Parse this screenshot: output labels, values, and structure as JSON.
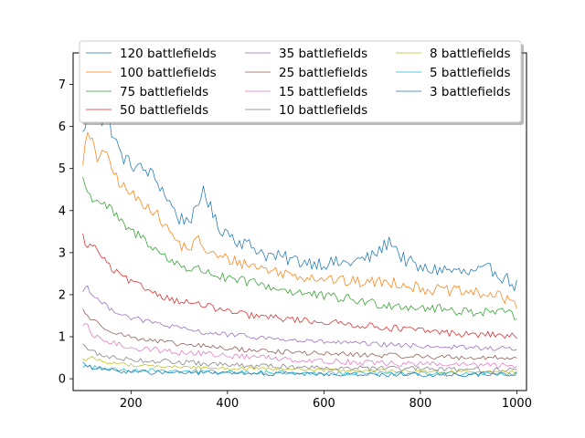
{
  "chart_data": {
    "type": "line",
    "title": "",
    "xlabel": "",
    "ylabel": "",
    "xlim": [
      80,
      1020
    ],
    "ylim": [
      -0.28,
      7.75
    ],
    "x_ticks": [
      200,
      400,
      600,
      800,
      1000
    ],
    "y_ticks": [
      0,
      1,
      2,
      3,
      4,
      5,
      6,
      7
    ],
    "x_range": [
      100,
      1000
    ],
    "x_step": 5,
    "grid": false,
    "legend_position": "top",
    "series": [
      {
        "name": "120 battlefields",
        "color": "#1f77b4",
        "anchors": [
          [
            100,
            5.8
          ],
          [
            110,
            6.3
          ],
          [
            120,
            6.1
          ],
          [
            130,
            6.4
          ],
          [
            140,
            6.1
          ],
          [
            150,
            6.3
          ],
          [
            160,
            5.9
          ],
          [
            170,
            5.6
          ],
          [
            180,
            5.3
          ],
          [
            200,
            5.1
          ],
          [
            220,
            5.0
          ],
          [
            240,
            4.9
          ],
          [
            260,
            4.6
          ],
          [
            280,
            4.2
          ],
          [
            300,
            3.8
          ],
          [
            320,
            3.8
          ],
          [
            340,
            4.0
          ],
          [
            350,
            4.6
          ],
          [
            360,
            4.2
          ],
          [
            380,
            3.6
          ],
          [
            400,
            3.5
          ],
          [
            420,
            3.3
          ],
          [
            440,
            3.2
          ],
          [
            460,
            3.1
          ],
          [
            480,
            2.95
          ],
          [
            500,
            2.9
          ],
          [
            550,
            2.8
          ],
          [
            600,
            2.75
          ],
          [
            650,
            2.75
          ],
          [
            700,
            2.9
          ],
          [
            740,
            3.3
          ],
          [
            760,
            2.9
          ],
          [
            800,
            2.6
          ],
          [
            850,
            2.6
          ],
          [
            900,
            2.5
          ],
          [
            950,
            2.6
          ],
          [
            1000,
            2.2
          ]
        ],
        "noise": 0.17
      },
      {
        "name": "100 battlefields",
        "color": "#ff7f0e",
        "anchors": [
          [
            100,
            5.2
          ],
          [
            110,
            5.8
          ],
          [
            120,
            5.6
          ],
          [
            130,
            5.2
          ],
          [
            140,
            5.5
          ],
          [
            160,
            5.0
          ],
          [
            180,
            4.6
          ],
          [
            200,
            4.4
          ],
          [
            220,
            4.2
          ],
          [
            240,
            4.1
          ],
          [
            260,
            3.8
          ],
          [
            280,
            3.5
          ],
          [
            300,
            3.2
          ],
          [
            320,
            3.1
          ],
          [
            340,
            3.3
          ],
          [
            360,
            3.0
          ],
          [
            380,
            2.9
          ],
          [
            400,
            2.85
          ],
          [
            450,
            2.7
          ],
          [
            500,
            2.55
          ],
          [
            550,
            2.45
          ],
          [
            600,
            2.4
          ],
          [
            650,
            2.3
          ],
          [
            700,
            2.3
          ],
          [
            750,
            2.3
          ],
          [
            800,
            2.15
          ],
          [
            850,
            2.1
          ],
          [
            900,
            2.05
          ],
          [
            950,
            2.0
          ],
          [
            1000,
            1.8
          ]
        ],
        "noise": 0.14
      },
      {
        "name": "75 battlefields",
        "color": "#2ca02c",
        "anchors": [
          [
            100,
            4.8
          ],
          [
            110,
            4.4
          ],
          [
            120,
            4.3
          ],
          [
            140,
            4.2
          ],
          [
            160,
            4.0
          ],
          [
            180,
            3.7
          ],
          [
            200,
            3.5
          ],
          [
            220,
            3.4
          ],
          [
            240,
            3.2
          ],
          [
            260,
            3.0
          ],
          [
            280,
            2.8
          ],
          [
            300,
            2.75
          ],
          [
            320,
            2.6
          ],
          [
            340,
            2.6
          ],
          [
            360,
            2.55
          ],
          [
            380,
            2.45
          ],
          [
            400,
            2.35
          ],
          [
            450,
            2.3
          ],
          [
            500,
            2.15
          ],
          [
            550,
            2.05
          ],
          [
            600,
            1.95
          ],
          [
            650,
            1.9
          ],
          [
            700,
            1.8
          ],
          [
            750,
            1.75
          ],
          [
            800,
            1.7
          ],
          [
            850,
            1.65
          ],
          [
            900,
            1.6
          ],
          [
            950,
            1.6
          ],
          [
            1000,
            1.5
          ]
        ],
        "noise": 0.12
      },
      {
        "name": "50 battlefields",
        "color": "#d62728",
        "anchors": [
          [
            100,
            3.4
          ],
          [
            110,
            3.1
          ],
          [
            120,
            3.2
          ],
          [
            140,
            2.9
          ],
          [
            160,
            2.6
          ],
          [
            180,
            2.45
          ],
          [
            200,
            2.3
          ],
          [
            220,
            2.2
          ],
          [
            240,
            2.1
          ],
          [
            260,
            2.0
          ],
          [
            280,
            1.9
          ],
          [
            300,
            1.85
          ],
          [
            350,
            1.75
          ],
          [
            400,
            1.6
          ],
          [
            450,
            1.5
          ],
          [
            500,
            1.45
          ],
          [
            550,
            1.4
          ],
          [
            600,
            1.35
          ],
          [
            650,
            1.3
          ],
          [
            700,
            1.25
          ],
          [
            750,
            1.2
          ],
          [
            800,
            1.15
          ],
          [
            850,
            1.1
          ],
          [
            900,
            1.05
          ],
          [
            950,
            1.05
          ],
          [
            1000,
            1.0
          ]
        ],
        "noise": 0.08
      },
      {
        "name": "35 battlefields",
        "color": "#9467bd",
        "anchors": [
          [
            100,
            2.1
          ],
          [
            110,
            2.2
          ],
          [
            120,
            2.0
          ],
          [
            140,
            1.8
          ],
          [
            160,
            1.65
          ],
          [
            180,
            1.55
          ],
          [
            200,
            1.45
          ],
          [
            220,
            1.4
          ],
          [
            240,
            1.35
          ],
          [
            260,
            1.3
          ],
          [
            280,
            1.25
          ],
          [
            300,
            1.2
          ],
          [
            350,
            1.1
          ],
          [
            400,
            1.05
          ],
          [
            450,
            1.0
          ],
          [
            500,
            0.95
          ],
          [
            550,
            0.9
          ],
          [
            600,
            0.88
          ],
          [
            650,
            0.85
          ],
          [
            700,
            0.82
          ],
          [
            750,
            0.8
          ],
          [
            800,
            0.78
          ],
          [
            850,
            0.76
          ],
          [
            900,
            0.74
          ],
          [
            950,
            0.72
          ],
          [
            1000,
            0.72
          ]
        ],
        "noise": 0.06
      },
      {
        "name": "25 battlefields",
        "color": "#8c564b",
        "anchors": [
          [
            100,
            1.65
          ],
          [
            110,
            1.5
          ],
          [
            120,
            1.4
          ],
          [
            140,
            1.25
          ],
          [
            160,
            1.15
          ],
          [
            180,
            1.05
          ],
          [
            200,
            1.0
          ],
          [
            220,
            0.95
          ],
          [
            240,
            0.9
          ],
          [
            260,
            0.88
          ],
          [
            280,
            0.85
          ],
          [
            300,
            0.82
          ],
          [
            350,
            0.78
          ],
          [
            400,
            0.72
          ],
          [
            450,
            0.68
          ],
          [
            500,
            0.65
          ],
          [
            550,
            0.62
          ],
          [
            600,
            0.6
          ],
          [
            650,
            0.58
          ],
          [
            700,
            0.56
          ],
          [
            750,
            0.55
          ],
          [
            800,
            0.53
          ],
          [
            850,
            0.52
          ],
          [
            900,
            0.5
          ],
          [
            950,
            0.5
          ],
          [
            1000,
            0.5
          ]
        ],
        "noise": 0.06
      },
      {
        "name": "15 battlefields",
        "color": "#e377c2",
        "anchors": [
          [
            100,
            1.2
          ],
          [
            110,
            1.3
          ],
          [
            120,
            1.0
          ],
          [
            140,
            0.95
          ],
          [
            160,
            0.85
          ],
          [
            180,
            0.8
          ],
          [
            200,
            0.75
          ],
          [
            220,
            0.72
          ],
          [
            240,
            0.7
          ],
          [
            260,
            0.68
          ],
          [
            280,
            0.66
          ],
          [
            300,
            0.62
          ],
          [
            350,
            0.6
          ],
          [
            400,
            0.55
          ],
          [
            450,
            0.52
          ],
          [
            500,
            0.5
          ],
          [
            550,
            0.45
          ],
          [
            600,
            0.42
          ],
          [
            650,
            0.4
          ],
          [
            700,
            0.38
          ],
          [
            750,
            0.36
          ],
          [
            800,
            0.35
          ],
          [
            850,
            0.34
          ],
          [
            900,
            0.33
          ],
          [
            950,
            0.32
          ],
          [
            1000,
            0.3
          ]
        ],
        "noise": 0.07
      },
      {
        "name": "10 battlefields",
        "color": "#7f7f7f",
        "anchors": [
          [
            100,
            0.85
          ],
          [
            110,
            0.7
          ],
          [
            120,
            0.65
          ],
          [
            140,
            0.55
          ],
          [
            160,
            0.5
          ],
          [
            180,
            0.5
          ],
          [
            200,
            0.45
          ],
          [
            220,
            0.45
          ],
          [
            240,
            0.42
          ],
          [
            260,
            0.42
          ],
          [
            280,
            0.4
          ],
          [
            300,
            0.4
          ],
          [
            350,
            0.35
          ],
          [
            400,
            0.33
          ],
          [
            450,
            0.3
          ],
          [
            500,
            0.3
          ],
          [
            550,
            0.28
          ],
          [
            600,
            0.27
          ],
          [
            650,
            0.26
          ],
          [
            700,
            0.25
          ],
          [
            750,
            0.24
          ],
          [
            800,
            0.23
          ],
          [
            850,
            0.22
          ],
          [
            900,
            0.22
          ],
          [
            950,
            0.21
          ],
          [
            1000,
            0.2
          ]
        ],
        "noise": 0.06
      },
      {
        "name": "8 battlefields",
        "color": "#bcbd22",
        "anchors": [
          [
            100,
            0.45
          ],
          [
            120,
            0.5
          ],
          [
            140,
            0.42
          ],
          [
            160,
            0.38
          ],
          [
            180,
            0.35
          ],
          [
            200,
            0.33
          ],
          [
            250,
            0.3
          ],
          [
            300,
            0.28
          ],
          [
            350,
            0.27
          ],
          [
            400,
            0.25
          ],
          [
            450,
            0.24
          ],
          [
            500,
            0.22
          ],
          [
            550,
            0.22
          ],
          [
            600,
            0.2
          ],
          [
            650,
            0.2
          ],
          [
            700,
            0.19
          ],
          [
            750,
            0.18
          ],
          [
            800,
            0.18
          ],
          [
            850,
            0.17
          ],
          [
            900,
            0.17
          ],
          [
            950,
            0.16
          ],
          [
            1000,
            0.16
          ]
        ],
        "noise": 0.04
      },
      {
        "name": "5 battlefields",
        "color": "#17becf",
        "anchors": [
          [
            100,
            0.3
          ],
          [
            120,
            0.28
          ],
          [
            140,
            0.25
          ],
          [
            160,
            0.24
          ],
          [
            180,
            0.22
          ],
          [
            200,
            0.2
          ],
          [
            250,
            0.2
          ],
          [
            300,
            0.18
          ],
          [
            350,
            0.17
          ],
          [
            400,
            0.16
          ],
          [
            450,
            0.15
          ],
          [
            500,
            0.15
          ],
          [
            550,
            0.14
          ],
          [
            600,
            0.14
          ],
          [
            650,
            0.13
          ],
          [
            700,
            0.13
          ],
          [
            750,
            0.12
          ],
          [
            800,
            0.12
          ],
          [
            850,
            0.12
          ],
          [
            900,
            0.11
          ],
          [
            950,
            0.11
          ],
          [
            1000,
            0.11
          ]
        ],
        "noise": 0.05
      },
      {
        "name": "3 battlefields",
        "color": "#1f77b4",
        "anchors": [
          [
            100,
            0.4
          ],
          [
            110,
            0.3
          ],
          [
            120,
            0.25
          ],
          [
            140,
            0.22
          ],
          [
            160,
            0.2
          ],
          [
            180,
            0.18
          ],
          [
            200,
            0.17
          ],
          [
            250,
            0.15
          ],
          [
            300,
            0.15
          ],
          [
            350,
            0.14
          ],
          [
            400,
            0.13
          ],
          [
            450,
            0.12
          ],
          [
            500,
            0.12
          ],
          [
            550,
            0.12
          ],
          [
            600,
            0.11
          ],
          [
            650,
            0.11
          ],
          [
            700,
            0.1
          ],
          [
            750,
            0.1
          ],
          [
            800,
            0.1
          ],
          [
            850,
            0.1
          ],
          [
            900,
            0.1
          ],
          [
            950,
            0.1
          ],
          [
            1000,
            0.1
          ]
        ],
        "noise": 0.05
      }
    ]
  }
}
